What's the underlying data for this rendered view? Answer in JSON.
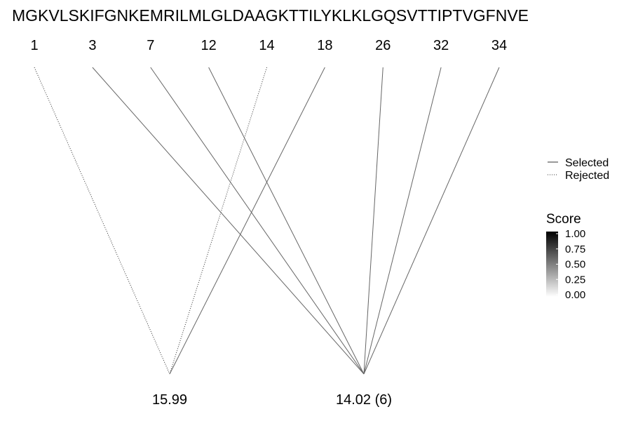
{
  "chart_data": {
    "type": "diagram",
    "sequence": "MGKVLSKIFGNKEMRILMLGLDAAGKTTILYKLKLGQSVTTIPTVGFNVE",
    "positions": [
      "1",
      "3",
      "7",
      "12",
      "14",
      "18",
      "26",
      "32",
      "34"
    ],
    "nodes": [
      {
        "label": "15.99"
      },
      {
        "label": "14.02 (6)"
      }
    ],
    "connections": [
      {
        "position": "1",
        "node": 0,
        "status": "rejected",
        "score": 0.8
      },
      {
        "position": "3",
        "node": 1,
        "status": "selected",
        "score": 0.6
      },
      {
        "position": "7",
        "node": 1,
        "status": "selected",
        "score": 0.6
      },
      {
        "position": "12",
        "node": 1,
        "status": "selected",
        "score": 0.6
      },
      {
        "position": "14",
        "node": 0,
        "status": "rejected",
        "score": 0.8
      },
      {
        "position": "18",
        "node": 0,
        "status": "selected",
        "score": 0.6
      },
      {
        "position": "26",
        "node": 1,
        "status": "selected",
        "score": 0.6
      },
      {
        "position": "32",
        "node": 1,
        "status": "selected",
        "score": 0.6
      },
      {
        "position": "34",
        "node": 1,
        "status": "selected",
        "score": 0.6
      }
    ],
    "legend": {
      "linetype": [
        {
          "label": "Selected",
          "style": "solid"
        },
        {
          "label": "Rejected",
          "style": "dotted"
        }
      ],
      "score_title": "Score",
      "score_ticks": [
        "1.00",
        "0.75",
        "0.50",
        "0.25",
        "0.00"
      ],
      "score_range": [
        0,
        1
      ],
      "score_color_low": "#ffffff",
      "score_color_high": "#000000",
      "placement": "right"
    }
  }
}
